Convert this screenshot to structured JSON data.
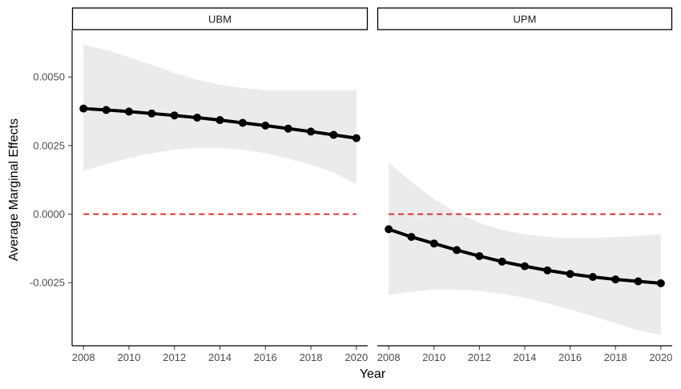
{
  "chart_data": {
    "type": "line",
    "xlabel": "Year",
    "ylabel": "Average Marginal Effects",
    "x_ticks": [
      2008,
      2010,
      2012,
      2014,
      2016,
      2018,
      2020
    ],
    "y_ticks": [
      0.005,
      0.0025,
      0.0,
      -0.0025
    ],
    "y_tick_labels": [
      "0.0050",
      "0.0025",
      "0.0000",
      "-0.0025"
    ],
    "ylim": [
      -0.0048,
      0.0067
    ],
    "xlim": [
      2007.5,
      2020.5
    ],
    "reference_line": {
      "y": 0.0,
      "style": "dashed",
      "color": "#d62728"
    },
    "colors": {
      "line": "#000000",
      "ribbon": "#ebebeb",
      "reference": "#d62728"
    },
    "grid": false,
    "panels": [
      {
        "label": "UBM",
        "x": [
          2008,
          2009,
          2010,
          2011,
          2012,
          2013,
          2014,
          2015,
          2016,
          2017,
          2018,
          2019,
          2020
        ],
        "y": [
          0.00385,
          0.0038,
          0.00374,
          0.00367,
          0.0036,
          0.00352,
          0.00343,
          0.00333,
          0.00323,
          0.00312,
          0.00301,
          0.00289,
          0.00277
        ],
        "ci_lower": [
          0.00158,
          0.00183,
          0.00205,
          0.00222,
          0.00236,
          0.00242,
          0.00242,
          0.00235,
          0.00222,
          0.00203,
          0.0018,
          0.00152,
          0.00108
        ],
        "ci_upper": [
          0.00618,
          0.00598,
          0.00572,
          0.00545,
          0.00515,
          0.0049,
          0.00472,
          0.0046,
          0.00452,
          0.00452,
          0.00452,
          0.00452,
          0.00452
        ]
      },
      {
        "label": "UPM",
        "x": [
          2008,
          2009,
          2010,
          2011,
          2012,
          2013,
          2014,
          2015,
          2016,
          2017,
          2018,
          2019,
          2020
        ],
        "y": [
          -0.00055,
          -0.00083,
          -0.00107,
          -0.00131,
          -0.00153,
          -0.00173,
          -0.0019,
          -0.00205,
          -0.00218,
          -0.00229,
          -0.00238,
          -0.00245,
          -0.00252
        ],
        "ci_lower": [
          -0.00295,
          -0.00283,
          -0.00275,
          -0.00275,
          -0.0028,
          -0.0029,
          -0.00305,
          -0.00325,
          -0.00348,
          -0.00372,
          -0.00398,
          -0.00423,
          -0.0044
        ],
        "ci_upper": [
          0.00188,
          0.00118,
          0.00055,
          5e-05,
          -0.00032,
          -0.00058,
          -0.00073,
          -0.00083,
          -0.00087,
          -0.00087,
          -0.00083,
          -0.0008,
          -0.00073
        ]
      }
    ]
  }
}
